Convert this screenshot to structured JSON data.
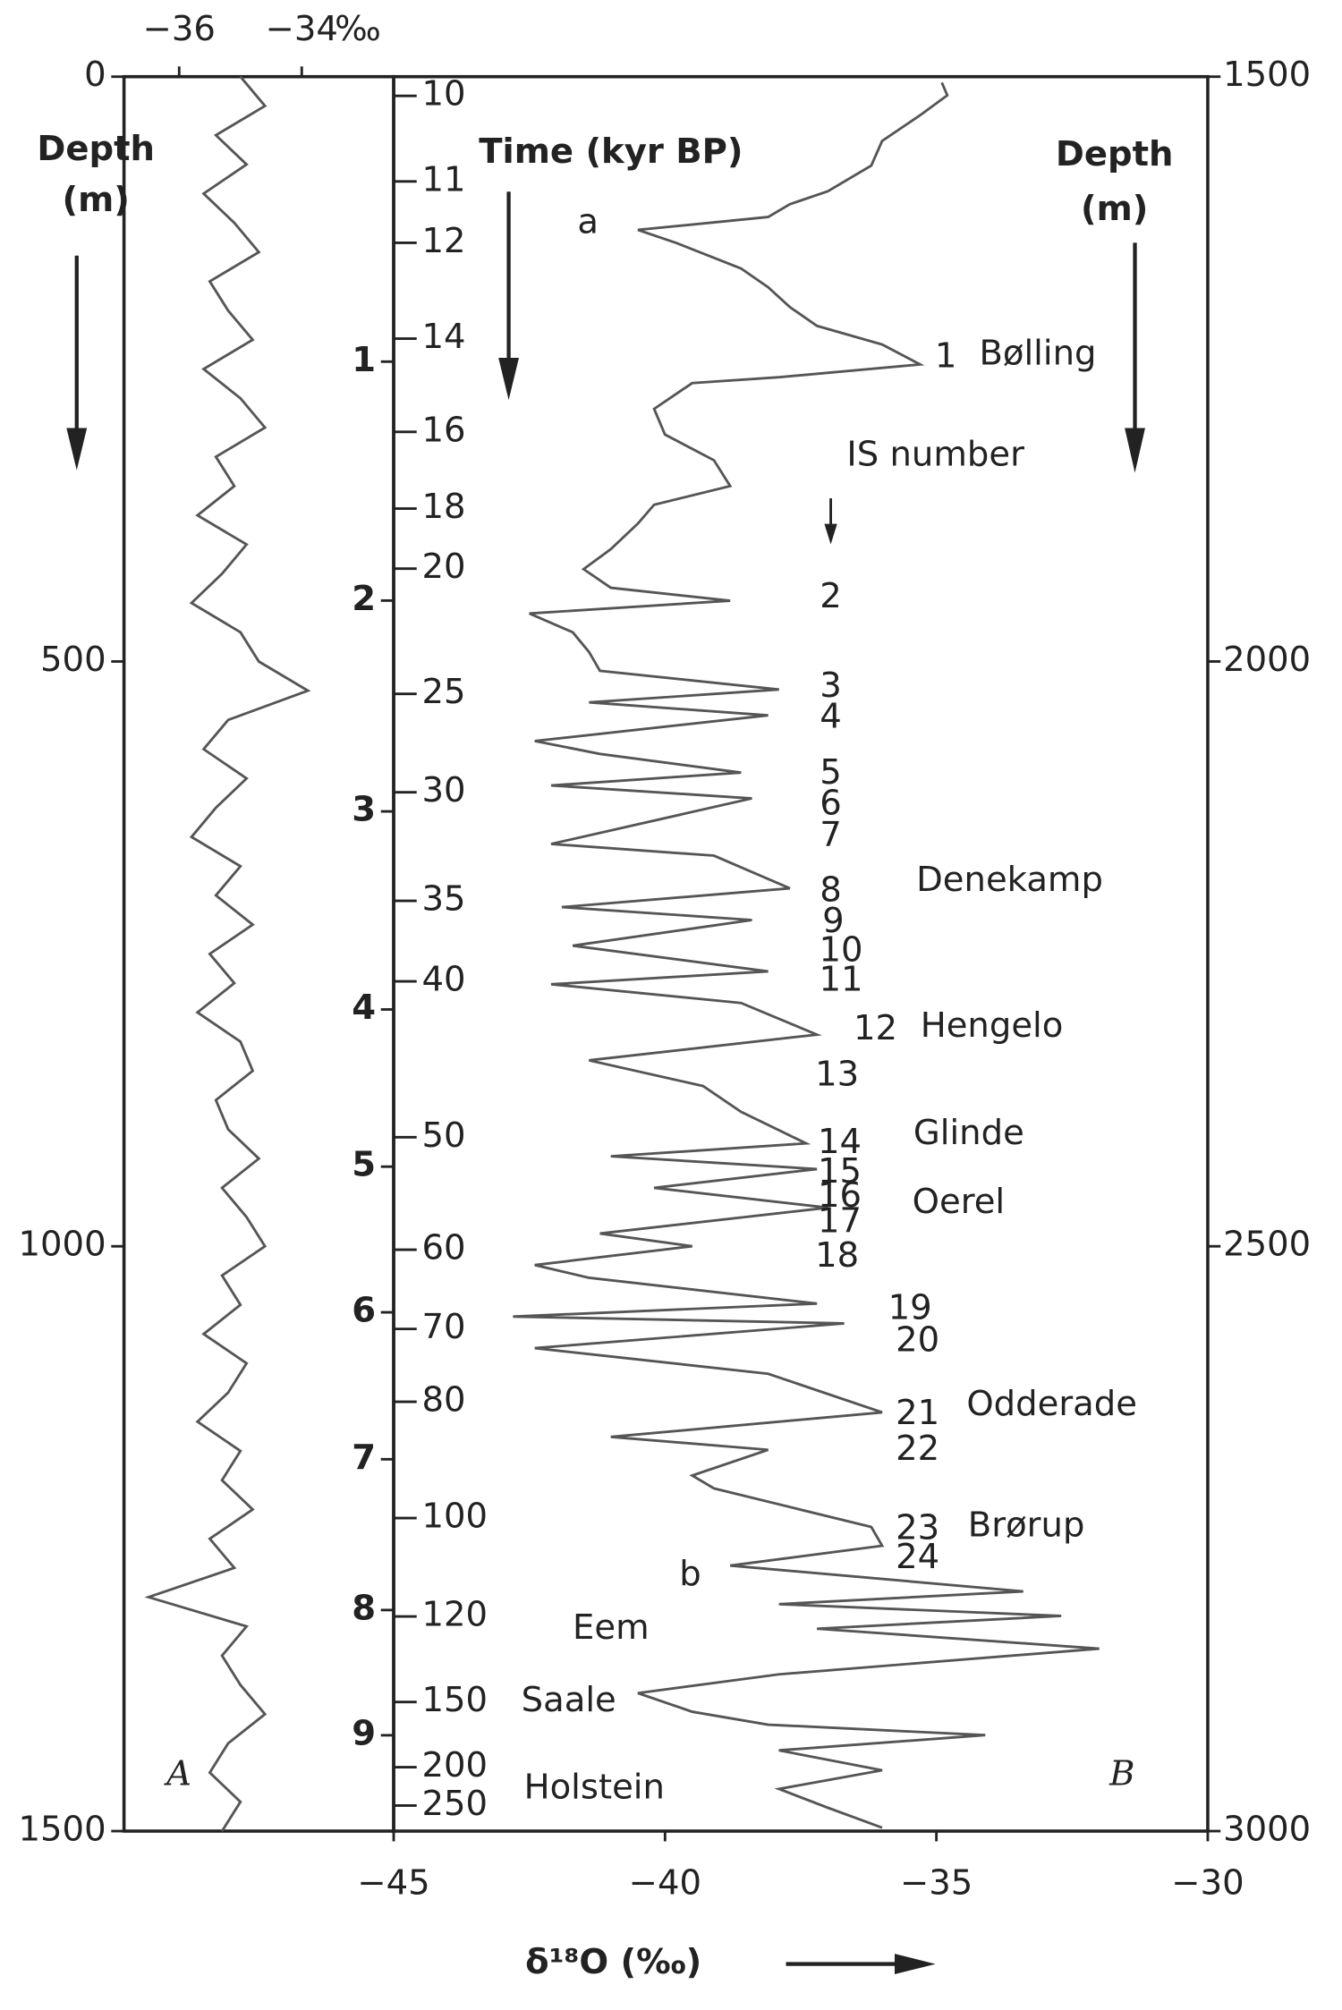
{
  "chart_data": [
    {
      "type": "line",
      "orientation": "vertical",
      "panel_label": "A",
      "color": "#555555",
      "grid": false,
      "y_label": [
        "Depth",
        "(m)"
      ],
      "xlim": [
        -36.9,
        -32.5
      ],
      "xticks": [
        {
          "value": -36,
          "label": "−36"
        },
        {
          "value": -34,
          "label": "−34"
        }
      ],
      "x_unit": "‰",
      "ylim": [
        0,
        1500
      ],
      "yticks": [
        0,
        500,
        1000,
        1500
      ],
      "depth": [
        0,
        25,
        50,
        75,
        100,
        125,
        150,
        175,
        200,
        225,
        250,
        275,
        300,
        325,
        350,
        375,
        400,
        425,
        450,
        475,
        500,
        525,
        550,
        575,
        600,
        625,
        650,
        675,
        700,
        725,
        750,
        775,
        800,
        825,
        850,
        875,
        900,
        925,
        950,
        975,
        1000,
        1025,
        1050,
        1075,
        1100,
        1125,
        1150,
        1175,
        1200,
        1225,
        1250,
        1275,
        1300,
        1325,
        1350,
        1375,
        1400,
        1425,
        1450,
        1475,
        1500
      ],
      "values": [
        -35.0,
        -34.6,
        -35.4,
        -34.9,
        -35.6,
        -35.1,
        -34.7,
        -35.5,
        -35.2,
        -34.8,
        -35.6,
        -35.0,
        -34.6,
        -35.4,
        -35.1,
        -35.7,
        -34.9,
        -35.3,
        -35.8,
        -35.0,
        -34.7,
        -33.9,
        -35.2,
        -35.6,
        -34.9,
        -35.4,
        -35.8,
        -35.0,
        -35.4,
        -34.8,
        -35.5,
        -35.1,
        -35.7,
        -35.0,
        -34.8,
        -35.4,
        -35.2,
        -34.7,
        -35.3,
        -34.9,
        -34.6,
        -35.3,
        -35.0,
        -35.6,
        -34.9,
        -35.2,
        -35.7,
        -35.0,
        -35.3,
        -34.8,
        -35.5,
        -35.1,
        -36.5,
        -34.9,
        -35.3,
        -35.0,
        -34.6,
        -35.2,
        -35.5,
        -35.0,
        -35.3
      ]
    },
    {
      "type": "line",
      "orientation": "vertical",
      "panel_label": "B",
      "color": "#555555",
      "grid": false,
      "y_label": [
        "Depth",
        "(m)"
      ],
      "x_label": "δ¹⁸O  (‰)",
      "xlim": [
        -45,
        -30
      ],
      "xticks": [
        {
          "value": -45,
          "label": "−45"
        },
        {
          "value": -40,
          "label": "−40"
        },
        {
          "value": -35,
          "label": "−35"
        },
        {
          "value": -30,
          "label": "−30"
        }
      ],
      "ylim": [
        1500,
        3000
      ],
      "yticks": [
        1500,
        2000,
        2500,
        3000
      ],
      "depth": [
        1505,
        1516,
        1533,
        1555,
        1576,
        1598,
        1609,
        1620,
        1631,
        1642,
        1664,
        1680,
        1697,
        1713,
        1729,
        1746,
        1757,
        1762,
        1784,
        1806,
        1828,
        1850,
        1866,
        1882,
        1904,
        1921,
        1937,
        1948,
        1959,
        1975,
        1992,
        2008,
        2024,
        2035,
        2046,
        2068,
        2079,
        2095,
        2106,
        2117,
        2156,
        2166,
        2194,
        2210,
        2221,
        2243,
        2265,
        2276,
        2292,
        2319,
        2341,
        2363,
        2385,
        2412,
        2423,
        2434,
        2450,
        2467,
        2489,
        2500,
        2516,
        2527,
        2549,
        2560,
        2566,
        2587,
        2609,
        2642,
        2663,
        2674,
        2696,
        2707,
        2740,
        2756,
        2773,
        2795,
        2806,
        2816,
        2827,
        2844,
        2866,
        2882,
        2898,
        2909,
        2918,
        2931,
        2948,
        2964,
        2980,
        2997
      ],
      "values": [
        -34.9,
        -34.8,
        -35.3,
        -36.0,
        -36.2,
        -37.0,
        -37.7,
        -38.1,
        -40.5,
        -39.8,
        -38.6,
        -38.1,
        -37.7,
        -37.2,
        -36.0,
        -35.3,
        -37.9,
        -39.5,
        -40.2,
        -40.0,
        -39.1,
        -38.8,
        -40.2,
        -40.5,
        -41.0,
        -41.5,
        -41.0,
        -38.8,
        -42.5,
        -41.7,
        -41.4,
        -41.2,
        -37.9,
        -41.4,
        -38.1,
        -42.4,
        -41.2,
        -38.6,
        -42.1,
        -38.4,
        -42.1,
        -39.1,
        -37.7,
        -41.9,
        -38.4,
        -41.7,
        -38.1,
        -42.1,
        -38.6,
        -37.2,
        -41.4,
        -39.3,
        -38.6,
        -37.4,
        -41.0,
        -37.2,
        -40.2,
        -37.0,
        -41.2,
        -39.5,
        -42.4,
        -41.4,
        -37.2,
        -42.8,
        -36.7,
        -42.4,
        -38.1,
        -36.0,
        -41.0,
        -38.1,
        -39.5,
        -39.1,
        -36.2,
        -36.0,
        -38.8,
        -33.4,
        -37.9,
        -32.7,
        -37.2,
        -32.0,
        -37.9,
        -40.5,
        -39.5,
        -38.1,
        -34.1,
        -37.9,
        -36.0,
        -37.9,
        -37.0,
        -36.0
      ],
      "time_axis_label": "Time  (kyr BP)",
      "time_ticks": [
        10,
        11,
        12,
        14,
        16,
        18,
        20,
        25,
        30,
        35,
        40,
        50,
        60,
        70,
        80,
        100,
        120,
        150,
        200,
        250
      ],
      "stage_marks": [
        1,
        2,
        3,
        4,
        5,
        6,
        7,
        8,
        9
      ],
      "is_label": "IS number",
      "is_numbers": [
        "1",
        "2",
        "3",
        "4",
        "5",
        "6",
        "7",
        "8",
        "9",
        "10",
        "11",
        "12",
        "13",
        "14",
        "15",
        "16",
        "17",
        "18",
        "19",
        "20",
        "21",
        "22",
        "23",
        "24"
      ],
      "annotations": [
        "Bølling",
        "Denekamp",
        "Hengelo",
        "Glinde",
        "Oerel",
        "Odderade",
        "Brørup",
        "Eem",
        "Saale",
        "Holstein"
      ],
      "markers": [
        "a",
        "b"
      ]
    }
  ]
}
